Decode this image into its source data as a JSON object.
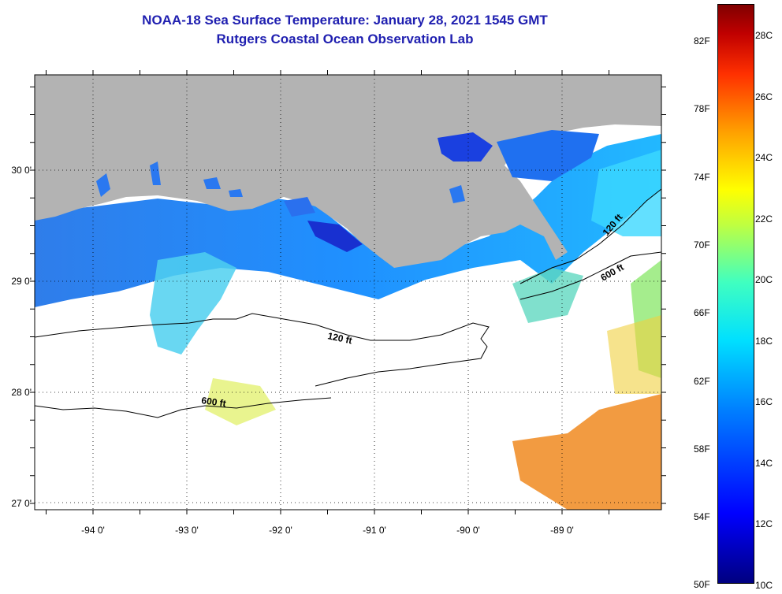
{
  "title": {
    "line1": "NOAA-18 Sea Surface Temperature:  January 28, 2021 1545 GMT",
    "line2": "Rutgers Coastal Ocean Observation Lab"
  },
  "map": {
    "lon_ticks": [
      {
        "value": -94,
        "label": "-94 0'"
      },
      {
        "value": -93,
        "label": "-93 0'"
      },
      {
        "value": -92,
        "label": "-92 0'"
      },
      {
        "value": -91,
        "label": "-91 0'"
      },
      {
        "value": -90,
        "label": "-90 0'"
      },
      {
        "value": -89,
        "label": "-89 0'"
      }
    ],
    "lat_ticks": [
      {
        "value": 30,
        "label": "30 0'"
      },
      {
        "value": 29,
        "label": "29 0'"
      },
      {
        "value": 28,
        "label": "28 0'"
      },
      {
        "value": 27,
        "label": "27 0'"
      }
    ],
    "contour_labels": [
      {
        "text": "120 ft",
        "lon": -91.8,
        "lat": 28.52
      },
      {
        "text": "600 ft",
        "lon": -92.55,
        "lat": 27.88
      },
      {
        "text": "120 ft",
        "lon": -88.7,
        "lat": 29.55
      },
      {
        "text": "600 ft",
        "lon": -88.7,
        "lat": 29.08
      }
    ],
    "land_color": "#b3b3b3",
    "ocean_color": "#ffffff"
  },
  "colorbar": {
    "fahrenheit_labels": [
      "82F",
      "78F",
      "74F",
      "70F",
      "66F",
      "62F",
      "58F",
      "54F",
      "50F"
    ],
    "celsius_labels": [
      "28C",
      "26C",
      "24C",
      "22C",
      "20C",
      "18C",
      "16C",
      "14C",
      "12C",
      "10C"
    ]
  }
}
